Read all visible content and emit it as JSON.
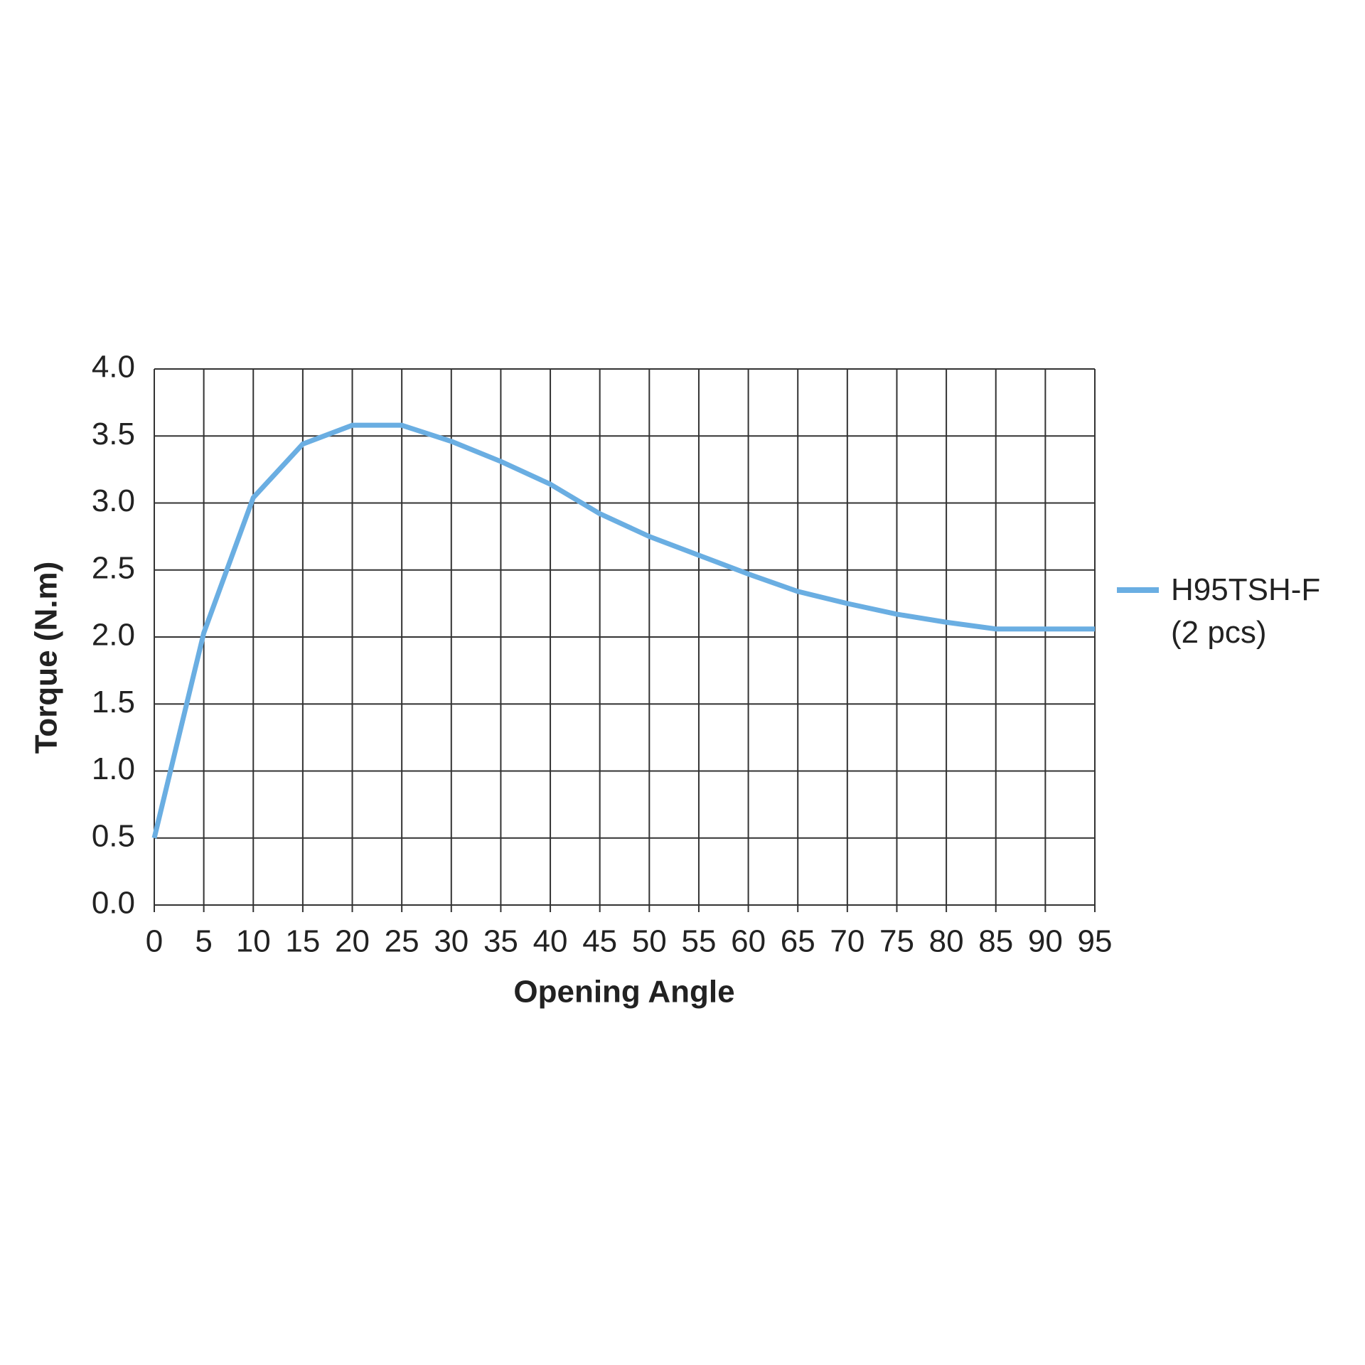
{
  "chart_data": {
    "type": "line",
    "x_label": "Opening Angle",
    "y_label": "Torque (N.m)",
    "x": [
      0,
      5,
      10,
      15,
      20,
      25,
      30,
      35,
      40,
      45,
      50,
      55,
      60,
      65,
      70,
      75,
      80,
      85,
      90,
      95
    ],
    "series": [
      {
        "name": "H95TSH-F (2 pcs)",
        "color": "#6aaee2",
        "values": [
          0.5,
          2.03,
          3.04,
          3.44,
          3.58,
          3.58,
          3.46,
          3.31,
          3.14,
          2.92,
          2.75,
          2.61,
          2.47,
          2.34,
          2.25,
          2.17,
          2.11,
          2.06,
          2.06,
          2.06
        ]
      }
    ],
    "xlim": [
      0,
      95
    ],
    "xticks": [
      0,
      5,
      10,
      15,
      20,
      25,
      30,
      35,
      40,
      45,
      50,
      55,
      60,
      65,
      70,
      75,
      80,
      85,
      90,
      95
    ],
    "ylim": [
      0,
      4
    ],
    "yticks": [
      {
        "value": 0,
        "label": "0.0"
      },
      0.5,
      {
        "value": 1,
        "label": "1.0"
      },
      1.5,
      {
        "value": 2,
        "label": "2.0"
      },
      2.5,
      {
        "value": 3,
        "label": "3.0"
      },
      3.5,
      {
        "value": 4,
        "label": "4.0"
      }
    ],
    "grid": true,
    "legend": "right"
  }
}
